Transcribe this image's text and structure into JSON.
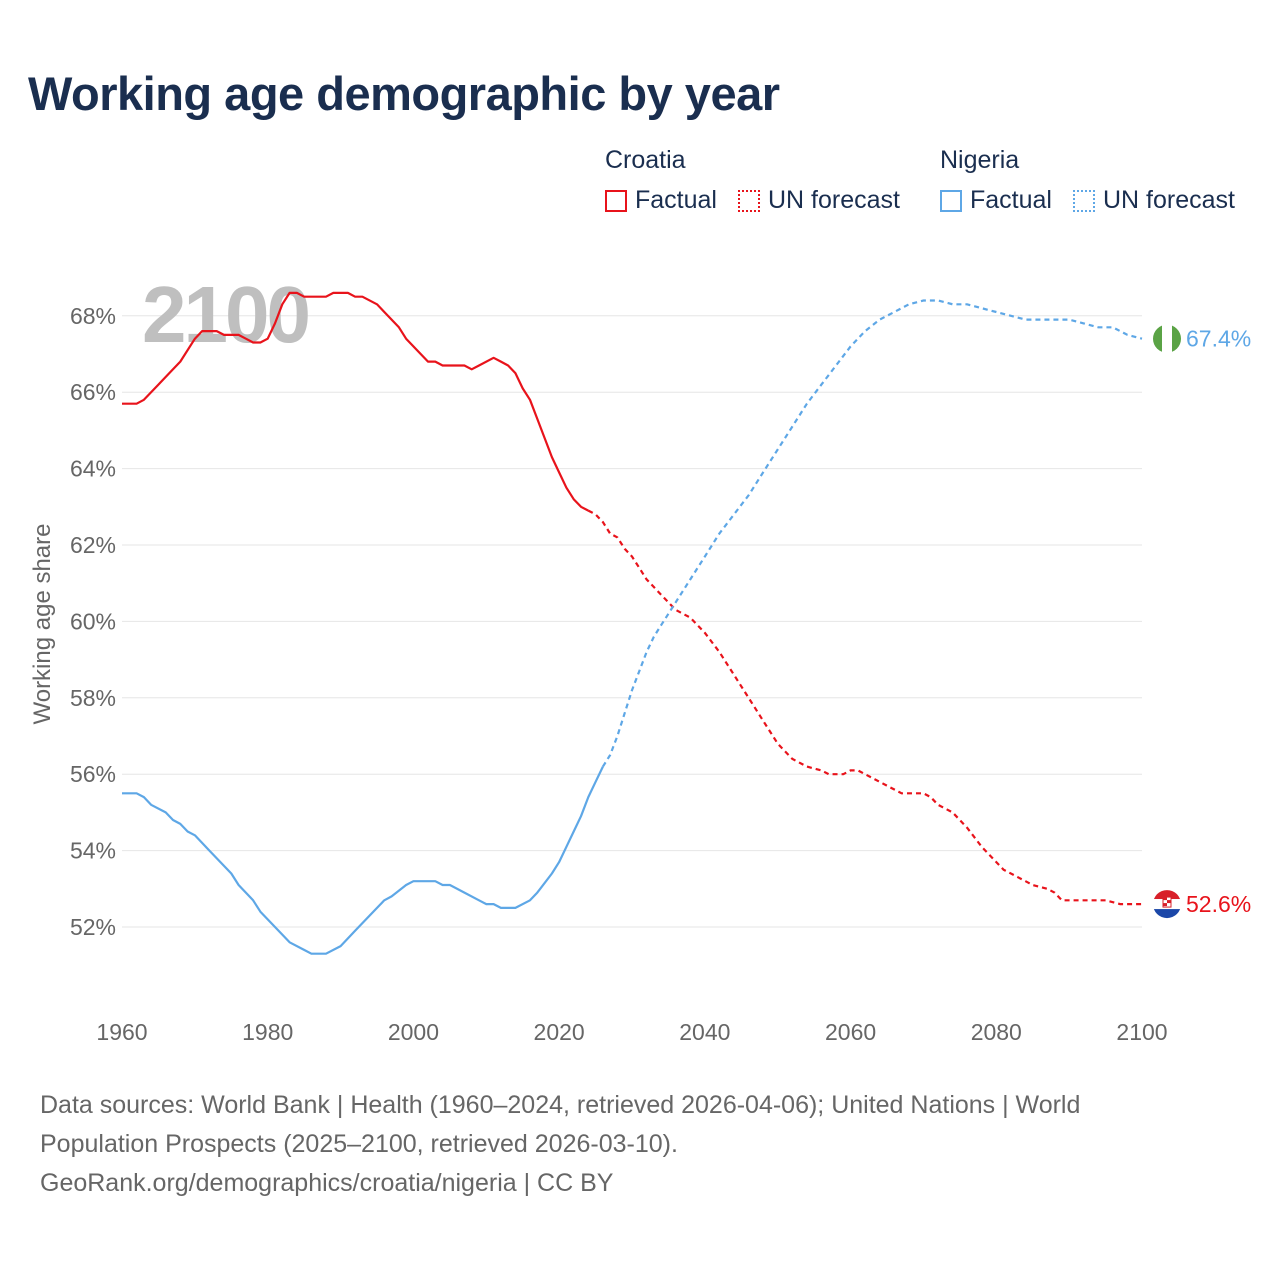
{
  "title": "Working age demographic by year",
  "legend": {
    "croatia": {
      "name": "Croatia",
      "factual": "Factual",
      "forecast": "UN forecast"
    },
    "nigeria": {
      "name": "Nigeria",
      "factual": "Factual",
      "forecast": "UN forecast"
    }
  },
  "footer": {
    "line1": "Data sources: World Bank | Health (1960–2024, retrieved 2026-04-06); United Nations | World",
    "line2": "Population Prospects (2025–2100, retrieved 2026-03-10).",
    "line3": "GeoRank.org/demographics/croatia/nigeria | CC BY"
  },
  "colors": {
    "croatia": "#e8131b",
    "nigeria": "#5ea7e6",
    "title": "#1a2e4f",
    "grid": "#e6e6e6",
    "year_watermark": "#bfbfbf"
  },
  "chart_data": {
    "type": "line",
    "year_label": "2100",
    "ylabel": "Working age share",
    "xlim": [
      1960,
      2100
    ],
    "ylim": [
      49.8,
      70
    ],
    "xticks": [
      "1960",
      "1980",
      "2000",
      "2020",
      "2040",
      "2060",
      "2080",
      "2100"
    ],
    "yticks": [
      "52%",
      "54%",
      "56%",
      "58%",
      "60%",
      "62%",
      "64%",
      "66%",
      "68%"
    ],
    "series": [
      {
        "name": "Croatia",
        "color": "#e8131b",
        "end_label": "52.6%",
        "flag": "croatia",
        "factual": [
          [
            1960,
            65.7
          ],
          [
            1962,
            65.7
          ],
          [
            1963,
            65.8
          ],
          [
            1965,
            66.2
          ],
          [
            1967,
            66.6
          ],
          [
            1968,
            66.8
          ],
          [
            1970,
            67.4
          ],
          [
            1971,
            67.6
          ],
          [
            1973,
            67.6
          ],
          [
            1974,
            67.5
          ],
          [
            1976,
            67.5
          ],
          [
            1977,
            67.4
          ],
          [
            1978,
            67.3
          ],
          [
            1979,
            67.3
          ],
          [
            1980,
            67.4
          ],
          [
            1981,
            67.8
          ],
          [
            1982,
            68.3
          ],
          [
            1983,
            68.6
          ],
          [
            1984,
            68.6
          ],
          [
            1985,
            68.5
          ],
          [
            1986,
            68.5
          ],
          [
            1988,
            68.5
          ],
          [
            1989,
            68.6
          ],
          [
            1991,
            68.6
          ],
          [
            1992,
            68.5
          ],
          [
            1993,
            68.5
          ],
          [
            1995,
            68.3
          ],
          [
            1996,
            68.1
          ],
          [
            1998,
            67.7
          ],
          [
            1999,
            67.4
          ],
          [
            2001,
            67.0
          ],
          [
            2002,
            66.8
          ],
          [
            2003,
            66.8
          ],
          [
            2004,
            66.7
          ],
          [
            2007,
            66.7
          ],
          [
            2008,
            66.6
          ],
          [
            2009,
            66.7
          ],
          [
            2011,
            66.9
          ],
          [
            2012,
            66.8
          ],
          [
            2013,
            66.7
          ],
          [
            2014,
            66.5
          ],
          [
            2015,
            66.1
          ],
          [
            2016,
            65.8
          ],
          [
            2017,
            65.3
          ],
          [
            2018,
            64.8
          ],
          [
            2019,
            64.3
          ],
          [
            2020,
            63.9
          ],
          [
            2021,
            63.5
          ],
          [
            2022,
            63.2
          ],
          [
            2023,
            63.0
          ],
          [
            2024,
            62.9
          ]
        ],
        "forecast": [
          [
            2024,
            62.9
          ],
          [
            2025,
            62.8
          ],
          [
            2026,
            62.6
          ],
          [
            2027,
            62.3
          ],
          [
            2028,
            62.2
          ],
          [
            2029,
            61.9
          ],
          [
            2030,
            61.7
          ],
          [
            2031,
            61.4
          ],
          [
            2032,
            61.1
          ],
          [
            2034,
            60.7
          ],
          [
            2035,
            60.5
          ],
          [
            2036,
            60.3
          ],
          [
            2038,
            60.1
          ],
          [
            2040,
            59.7
          ],
          [
            2042,
            59.2
          ],
          [
            2044,
            58.6
          ],
          [
            2046,
            58.0
          ],
          [
            2048,
            57.4
          ],
          [
            2050,
            56.8
          ],
          [
            2051,
            56.6
          ],
          [
            2052,
            56.4
          ],
          [
            2054,
            56.2
          ],
          [
            2056,
            56.1
          ],
          [
            2057,
            56.0
          ],
          [
            2059,
            56.0
          ],
          [
            2060,
            56.1
          ],
          [
            2061,
            56.1
          ],
          [
            2063,
            55.9
          ],
          [
            2065,
            55.7
          ],
          [
            2067,
            55.5
          ],
          [
            2070,
            55.5
          ],
          [
            2071,
            55.4
          ],
          [
            2072,
            55.2
          ],
          [
            2074,
            55.0
          ],
          [
            2076,
            54.6
          ],
          [
            2078,
            54.1
          ],
          [
            2080,
            53.7
          ],
          [
            2081,
            53.5
          ],
          [
            2083,
            53.3
          ],
          [
            2085,
            53.1
          ],
          [
            2087,
            53.0
          ],
          [
            2088,
            52.9
          ],
          [
            2089,
            52.7
          ],
          [
            2095,
            52.7
          ],
          [
            2097,
            52.6
          ],
          [
            2100,
            52.6
          ]
        ]
      },
      {
        "name": "Nigeria",
        "color": "#5ea7e6",
        "end_label": "67.4%",
        "flag": "nigeria",
        "factual": [
          [
            1960,
            55.5
          ],
          [
            1962,
            55.5
          ],
          [
            1963,
            55.4
          ],
          [
            1964,
            55.2
          ],
          [
            1966,
            55.0
          ],
          [
            1967,
            54.8
          ],
          [
            1968,
            54.7
          ],
          [
            1969,
            54.5
          ],
          [
            1970,
            54.4
          ],
          [
            1972,
            54.0
          ],
          [
            1974,
            53.6
          ],
          [
            1975,
            53.4
          ],
          [
            1976,
            53.1
          ],
          [
            1978,
            52.7
          ],
          [
            1979,
            52.4
          ],
          [
            1981,
            52.0
          ],
          [
            1983,
            51.6
          ],
          [
            1985,
            51.4
          ],
          [
            1986,
            51.3
          ],
          [
            1988,
            51.3
          ],
          [
            1990,
            51.5
          ],
          [
            1992,
            51.9
          ],
          [
            1994,
            52.3
          ],
          [
            1996,
            52.7
          ],
          [
            1997,
            52.8
          ],
          [
            1999,
            53.1
          ],
          [
            2000,
            53.2
          ],
          [
            2003,
            53.2
          ],
          [
            2004,
            53.1
          ],
          [
            2005,
            53.1
          ],
          [
            2007,
            52.9
          ],
          [
            2009,
            52.7
          ],
          [
            2010,
            52.6
          ],
          [
            2011,
            52.6
          ],
          [
            2012,
            52.5
          ],
          [
            2014,
            52.5
          ],
          [
            2016,
            52.7
          ],
          [
            2017,
            52.9
          ],
          [
            2019,
            53.4
          ],
          [
            2020,
            53.7
          ],
          [
            2021,
            54.1
          ],
          [
            2022,
            54.5
          ],
          [
            2023,
            54.9
          ],
          [
            2024,
            55.4
          ],
          [
            2025,
            55.8
          ],
          [
            2026,
            56.2
          ]
        ],
        "forecast": [
          [
            2026,
            56.2
          ],
          [
            2027,
            56.5
          ],
          [
            2028,
            57.0
          ],
          [
            2029,
            57.6
          ],
          [
            2030,
            58.2
          ],
          [
            2031,
            58.7
          ],
          [
            2032,
            59.2
          ],
          [
            2033,
            59.6
          ],
          [
            2034,
            59.9
          ],
          [
            2035,
            60.2
          ],
          [
            2036,
            60.5
          ],
          [
            2037,
            60.8
          ],
          [
            2038,
            61.1
          ],
          [
            2039,
            61.4
          ],
          [
            2040,
            61.7
          ],
          [
            2042,
            62.3
          ],
          [
            2044,
            62.8
          ],
          [
            2046,
            63.3
          ],
          [
            2048,
            63.9
          ],
          [
            2050,
            64.5
          ],
          [
            2052,
            65.1
          ],
          [
            2054,
            65.7
          ],
          [
            2056,
            66.2
          ],
          [
            2058,
            66.7
          ],
          [
            2060,
            67.2
          ],
          [
            2062,
            67.6
          ],
          [
            2064,
            67.9
          ],
          [
            2066,
            68.1
          ],
          [
            2068,
            68.3
          ],
          [
            2070,
            68.4
          ],
          [
            2072,
            68.4
          ],
          [
            2074,
            68.3
          ],
          [
            2076,
            68.3
          ],
          [
            2078,
            68.2
          ],
          [
            2080,
            68.1
          ],
          [
            2082,
            68.0
          ],
          [
            2084,
            67.9
          ],
          [
            2086,
            67.9
          ],
          [
            2088,
            67.9
          ],
          [
            2090,
            67.9
          ],
          [
            2092,
            67.8
          ],
          [
            2094,
            67.7
          ],
          [
            2096,
            67.7
          ],
          [
            2098,
            67.5
          ],
          [
            2100,
            67.4
          ]
        ]
      }
    ]
  }
}
